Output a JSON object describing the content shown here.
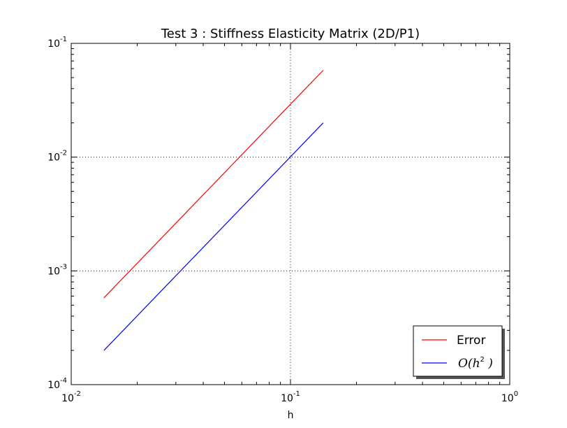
{
  "chart_data": {
    "type": "line",
    "title": "Test 3 : Stiffness Elasticity Matrix (2D/P1)",
    "xlabel": "h",
    "ylabel": "",
    "xscale": "log",
    "yscale": "log",
    "xlim": [
      0.01,
      1
    ],
    "ylim": [
      0.0001,
      0.1
    ],
    "grid": true,
    "legend_position": "lower-right",
    "x_ticks": [
      {
        "value": 0.01,
        "base": "10",
        "exp": "-2"
      },
      {
        "value": 0.1,
        "base": "10",
        "exp": "-1"
      },
      {
        "value": 1,
        "base": "10",
        "exp": "0"
      }
    ],
    "y_ticks": [
      {
        "value": 0.0001,
        "base": "10",
        "exp": "-4"
      },
      {
        "value": 0.001,
        "base": "10",
        "exp": "-3"
      },
      {
        "value": 0.01,
        "base": "10",
        "exp": "-2"
      },
      {
        "value": 0.1,
        "base": "10",
        "exp": "-1"
      }
    ],
    "series": [
      {
        "name": "Error",
        "color": "#ff0000",
        "x": [
          0.0141,
          0.141
        ],
        "y": [
          0.00058,
          0.058
        ]
      },
      {
        "name": "O(h^2 )",
        "color": "#0000ff",
        "x": [
          0.0141,
          0.141
        ],
        "y": [
          0.0002,
          0.02
        ]
      }
    ],
    "legend_labels": {
      "error": "Error",
      "order_prefix": "O(",
      "order_var": "h",
      "order_exp": "2",
      "order_suffix": " )"
    }
  }
}
